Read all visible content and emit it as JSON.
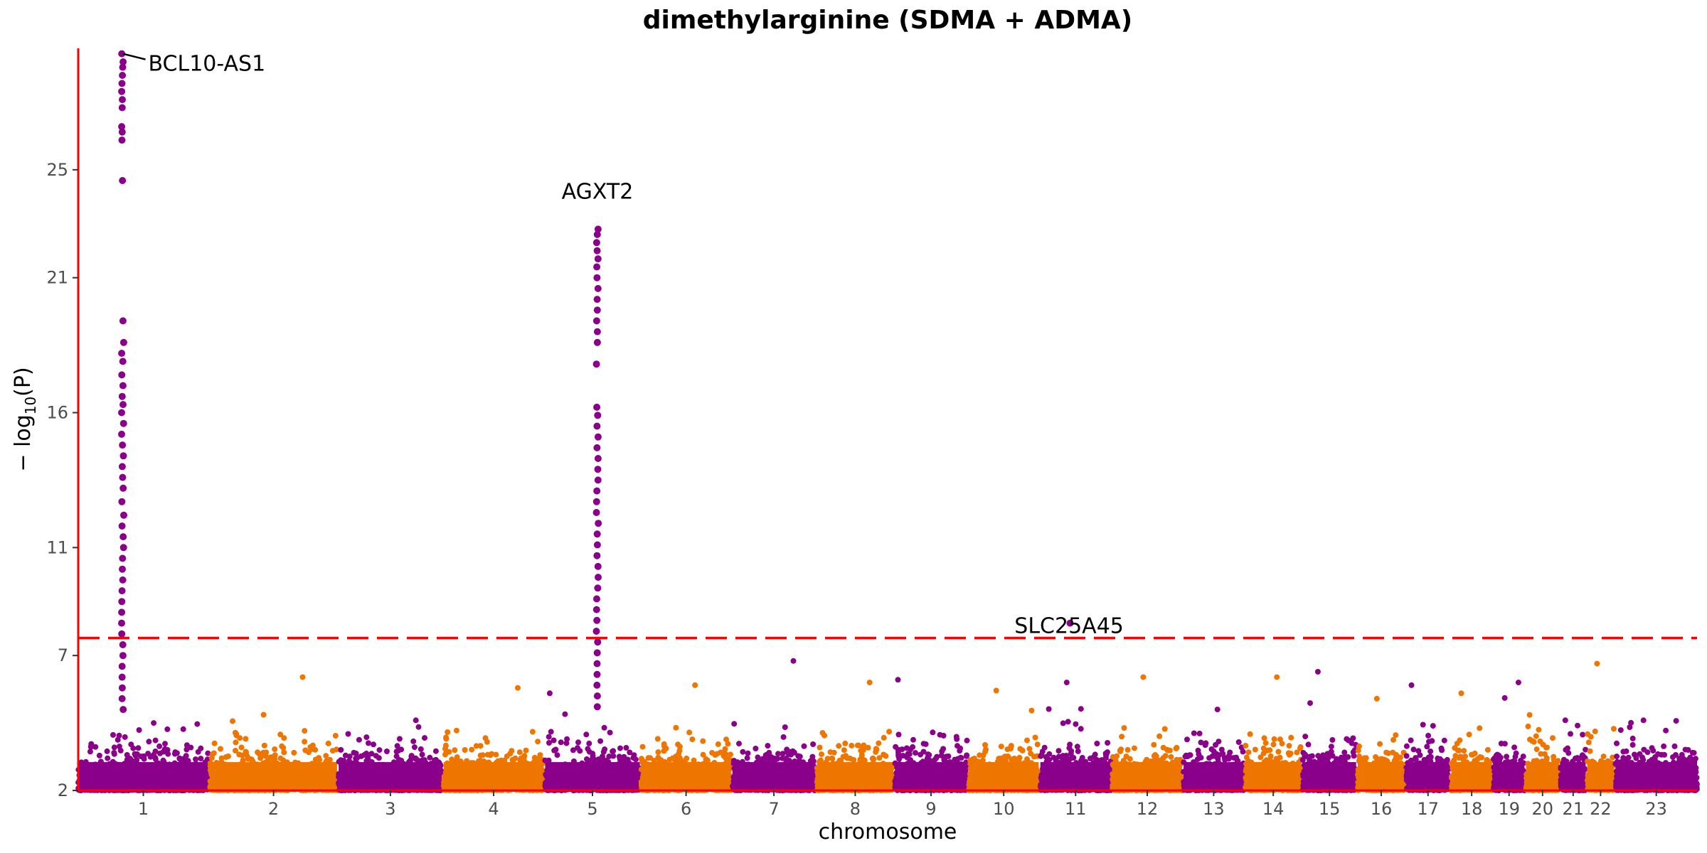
{
  "chart_data": {
    "type": "scatter",
    "subtype": "manhattan",
    "title": "dimethylarginine (SDMA + ADMA)",
    "xlabel": "chromosome",
    "ylabel_main": "− log",
    "ylabel_sub": "10",
    "ylabel_paren": "(P)",
    "ylim": [
      2,
      29.5
    ],
    "yticks": [
      "2",
      "7",
      "11",
      "16",
      "21",
      "25"
    ],
    "grid": false,
    "legend": "none",
    "colors": {
      "odd": "#8b008b",
      "even": "#ee7600",
      "axis": "#ff0000",
      "threshold": "#ff0000",
      "tick_text": "#4d4d4d"
    },
    "threshold": 7.65,
    "chromosomes": [
      {
        "label": "1",
        "length": 249,
        "max": 4.5
      },
      {
        "label": "2",
        "length": 243,
        "max": 6.2
      },
      {
        "label": "3",
        "length": 198,
        "max": 4.6
      },
      {
        "label": "4",
        "length": 191,
        "max": 5.8
      },
      {
        "label": "5",
        "length": 181,
        "max": 5.6
      },
      {
        "label": "6",
        "length": 171,
        "max": 5.9
      },
      {
        "label": "7",
        "length": 159,
        "max": 6.8
      },
      {
        "label": "8",
        "length": 146,
        "max": 6.0
      },
      {
        "label": "9",
        "length": 138,
        "max": 6.1
      },
      {
        "label": "10",
        "length": 134,
        "max": 5.7
      },
      {
        "label": "11",
        "length": 135,
        "max": 6.0
      },
      {
        "label": "12",
        "length": 133,
        "max": 6.2
      },
      {
        "label": "13",
        "length": 115,
        "max": 5.0
      },
      {
        "label": "14",
        "length": 107,
        "max": 6.2
      },
      {
        "label": "15",
        "length": 102,
        "max": 6.4
      },
      {
        "label": "16",
        "length": 90,
        "max": 5.4
      },
      {
        "label": "17",
        "length": 83,
        "max": 5.9
      },
      {
        "label": "18",
        "length": 78,
        "max": 5.6
      },
      {
        "label": "19",
        "length": 59,
        "max": 6.0
      },
      {
        "label": "20",
        "length": 63,
        "max": 4.8
      },
      {
        "label": "21",
        "length": 48,
        "max": 4.6
      },
      {
        "label": "22",
        "length": 51,
        "max": 6.7
      },
      {
        "label": "23",
        "length": 156,
        "max": 4.6
      }
    ],
    "peaks": [
      {
        "chrom": "1",
        "pos": 85,
        "values": [
          29.3,
          29.0,
          28.8,
          28.5,
          28.2,
          27.9,
          27.6,
          27.3,
          26.6,
          26.4,
          26.1,
          24.6,
          19.4,
          18.6,
          18.2,
          17.9,
          17.4,
          17.0,
          16.6,
          16.3,
          16.0,
          15.6,
          15.2,
          14.8,
          14.4,
          14.0,
          13.6,
          13.2,
          12.7,
          12.2,
          11.8,
          11.4,
          11.0,
          10.6,
          10.2,
          9.8,
          9.4,
          9.0,
          8.6,
          8.2,
          7.8,
          7.4,
          7.0,
          6.6,
          6.2,
          5.8,
          5.4,
          5.0
        ]
      },
      {
        "chrom": "5",
        "pos": 100,
        "values": [
          22.8,
          22.6,
          22.3,
          22.0,
          21.7,
          21.4,
          21.0,
          20.6,
          20.2,
          19.8,
          19.4,
          19.0,
          18.6,
          17.8,
          16.2,
          15.9,
          15.5,
          15.1,
          14.7,
          14.3,
          13.9,
          13.5,
          13.1,
          12.7,
          12.3,
          11.9,
          11.5,
          11.1,
          10.7,
          10.3,
          9.9,
          9.5,
          9.1,
          8.7,
          8.3,
          7.9,
          7.5,
          7.1,
          6.7,
          6.3,
          5.9,
          5.5,
          5.1
        ]
      },
      {
        "chrom": "11",
        "pos": 55,
        "values": [
          8.2
        ]
      }
    ],
    "annotations": [
      {
        "text": "BCL10-AS1",
        "chrom": "1",
        "pos": 85,
        "y": 29.3
      },
      {
        "text": "AGXT2",
        "chrom": "5",
        "pos": 100,
        "y": 24.4
      },
      {
        "text": "SLC25A45",
        "chrom": "11",
        "pos": 55,
        "y": 8.2
      }
    ]
  }
}
